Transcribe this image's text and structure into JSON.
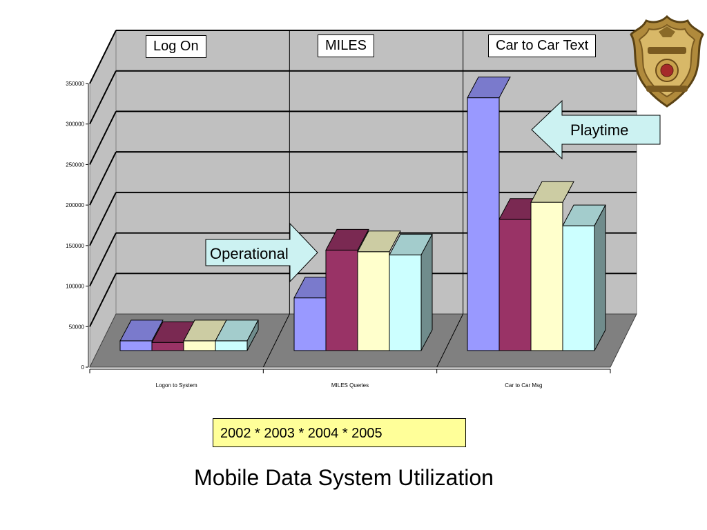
{
  "title": "Mobile Data System Utilization",
  "legend_text": "2002 * 2003 * 2004 * 2005",
  "header_labels": [
    "Log On",
    "MILES",
    "Car to Car Text"
  ],
  "annotations": {
    "operational": "Operational",
    "playtime": "Playtime"
  },
  "colors": {
    "wall": "#c0c0c0",
    "floor": "#808080",
    "arrow_fill": "#ccf2f2"
  },
  "chart_data": {
    "type": "bar",
    "projection": "3d-clustered",
    "categories": [
      "Logon to System",
      "MILES Queries",
      "Car to Car Msg"
    ],
    "series": [
      {
        "color": "#9999ff",
        "values": [
          12000,
          65000,
          312000
        ]
      },
      {
        "color": "#993366",
        "values": [
          10000,
          124000,
          162000
        ]
      },
      {
        "color": "#ffffcc",
        "values": [
          12000,
          122000,
          183000
        ]
      },
      {
        "color": "#ccffff",
        "values": [
          12000,
          118000,
          154000
        ]
      }
    ],
    "ylim": [
      0,
      350000
    ],
    "y_ticks": [
      0,
      50000,
      100000,
      150000,
      200000,
      250000,
      300000,
      350000
    ],
    "y_tick_labels": [
      "0",
      "50000",
      "100000",
      "150000",
      "200000",
      "250000",
      "300000",
      "350000"
    ],
    "grid": true,
    "xlabel": "",
    "ylabel": ""
  }
}
